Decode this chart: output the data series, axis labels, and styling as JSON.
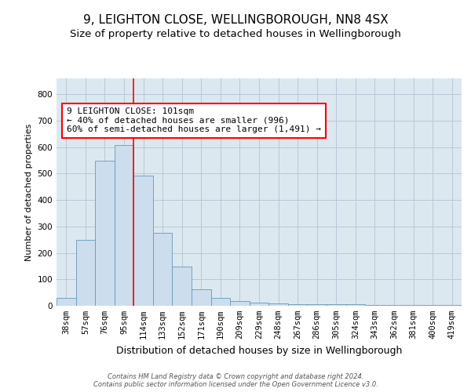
{
  "title": "9, LEIGHTON CLOSE, WELLINGBOROUGH, NN8 4SX",
  "subtitle": "Size of property relative to detached houses in Wellingborough",
  "xlabel": "Distribution of detached houses by size in Wellingborough",
  "ylabel": "Number of detached properties",
  "footer_line1": "Contains HM Land Registry data © Crown copyright and database right 2024.",
  "footer_line2": "Contains public sector information licensed under the Open Government Licence v3.0.",
  "bar_labels": [
    "38sqm",
    "57sqm",
    "76sqm",
    "95sqm",
    "114sqm",
    "133sqm",
    "152sqm",
    "171sqm",
    "190sqm",
    "209sqm",
    "229sqm",
    "248sqm",
    "267sqm",
    "286sqm",
    "305sqm",
    "324sqm",
    "343sqm",
    "362sqm",
    "381sqm",
    "400sqm",
    "419sqm"
  ],
  "bar_values": [
    30,
    248,
    549,
    607,
    493,
    277,
    147,
    62,
    30,
    18,
    12,
    10,
    5,
    5,
    5,
    5,
    4,
    4,
    4,
    4,
    4
  ],
  "bar_color": "#ccdded",
  "bar_edgecolor": "#6699bb",
  "grid_color": "#b8c8d8",
  "background_color": "#dce8f0",
  "annotation_text": "9 LEIGHTON CLOSE: 101sqm\n← 40% of detached houses are smaller (996)\n60% of semi-detached houses are larger (1,491) →",
  "ylim": [
    0,
    860
  ],
  "yticks": [
    0,
    100,
    200,
    300,
    400,
    500,
    600,
    700,
    800
  ],
  "title_fontsize": 11,
  "subtitle_fontsize": 9.5,
  "xlabel_fontsize": 9,
  "ylabel_fontsize": 8,
  "tick_fontsize": 7.5,
  "annotation_fontsize": 8,
  "footer_fontsize": 6
}
